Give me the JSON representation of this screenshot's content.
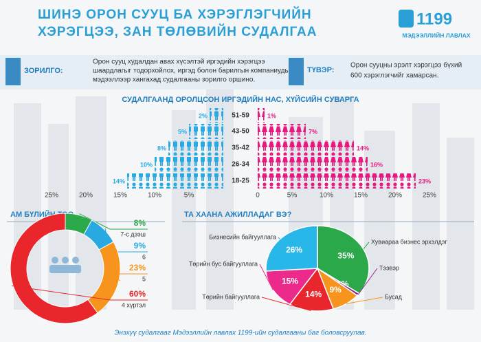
{
  "header": {
    "title_lines": [
      "ШИНЭ ОРОН СУУЦ БА ХЭРЭГЛЭГЧИЙН",
      "ХЭРЭГЦЭЭ, ЗАН ТӨЛӨВИЙН СУДАЛГАА"
    ],
    "logo_number": "1199",
    "logo_text": "МЭДЭЭЛЛИЙН ЛАВЛАХ"
  },
  "goal": {
    "label": "ЗОРИЛГО:",
    "lines": [
      "Орон сууц худалдан авах хүсэлтэй иргэдийн хэрэгцээ",
      "шаардлагыг тодорхойлох, иргэд болон барилгын компаниудыг",
      "мэдээллээр хангахад судалгааны зорилго оршино."
    ]
  },
  "scope": {
    "label": "ТҮВЭР:",
    "lines": [
      "Орон сууцны эрэлт хэрэгцээ бүхий",
      "600 хэрэглэгчийг хамарсан."
    ]
  },
  "chart_data": [
    {
      "type": "pyramid",
      "title": "СУДАЛГААНД ОРОЛЦСОН ИРГЭДИЙН НАС, ХҮЙСИЙН СУВАРГА",
      "categories": [
        "51-59",
        "43-50",
        "35-42",
        "26-34",
        "18-25"
      ],
      "series": [
        {
          "color": "#29a9e1",
          "values": [
            2,
            5,
            8,
            10,
            14
          ],
          "value_labels": [
            "2%",
            "5%",
            "8%",
            "10%",
            "14%"
          ]
        },
        {
          "color": "#e6197f",
          "values": [
            1,
            7,
            14,
            16,
            23
          ],
          "value_labels": [
            "1%",
            "7%",
            "14%",
            "16%",
            "23%"
          ]
        }
      ],
      "xlim": [
        -25,
        25
      ],
      "xticks": [
        {
          "value": -25,
          "label": "25%"
        },
        {
          "value": -20,
          "label": "20%"
        },
        {
          "value": -15,
          "label": "15%"
        },
        {
          "value": -10,
          "label": "10%"
        },
        {
          "value": -5,
          "label": "5%"
        },
        0,
        {
          "value": 5,
          "label": "5%"
        },
        {
          "value": 10,
          "label": "10%"
        },
        {
          "value": 15,
          "label": "15%"
        },
        {
          "value": 20,
          "label": "20%"
        },
        {
          "value": 25,
          "label": "25%"
        }
      ]
    },
    {
      "type": "donut",
      "title": "АМ БҮЛИЙН ТОО",
      "categories": [
        "7-с дээш",
        "6",
        "5",
        "4 хүртэл"
      ],
      "values": [
        8,
        9,
        23,
        60
      ],
      "value_labels": [
        "8%",
        "9%",
        "23%",
        "60%"
      ],
      "colors": [
        "#2aa84a",
        "#29a9e1",
        "#f7941d",
        "#e8262b"
      ]
    },
    {
      "type": "pie",
      "title": "ТА ХААНА АЖИЛЛАДАГ ВЭ?",
      "categories": [
        "Хувиараа бизнес эрхэлдэг",
        "Тээвэр",
        "Бусад",
        "Төрийн байгууллага",
        "Төрийн бус байгууллага",
        "Бизнесийн байгууллага"
      ],
      "values": [
        35,
        1,
        9,
        14,
        15,
        26
      ],
      "value_labels": [
        "35%",
        "1%",
        "9%",
        "14%",
        "15%",
        "26%"
      ],
      "colors": [
        "#2aa84a",
        "#92278f",
        "#f7941d",
        "#e8262b",
        "#ec2a8c",
        "#29b6e8"
      ]
    }
  ],
  "footer": "Энэхүү судалгааг Мэдээллийн лавлах 1199-ийн судалгааны баг боловсруулав."
}
